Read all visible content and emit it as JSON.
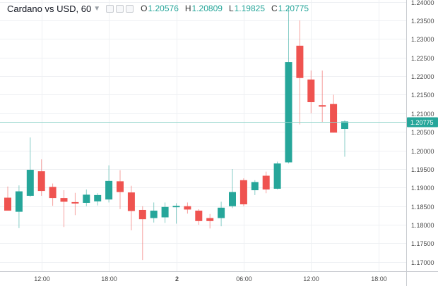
{
  "header": {
    "title": "Cardano vs USD, 60",
    "open_key": "O",
    "open": "1.20576",
    "high_key": "H",
    "high": "1.20809",
    "low_key": "L",
    "low": "1.19825",
    "close_key": "C",
    "close": "1.20775",
    "value_color": "#26a69a"
  },
  "colors": {
    "up": "#26a69a",
    "down": "#ef5350",
    "up_wick": "#26a69a",
    "down_wick": "#ef5350",
    "grid": "#eef0f3",
    "price_line": "#8fd3c9",
    "badge": "#26a69a"
  },
  "chart_data": {
    "type": "candlestick",
    "grid": true,
    "ylim": [
      1.1675,
      1.2405
    ],
    "yticks": [
      "1.24000",
      "1.23500",
      "1.23000",
      "1.22500",
      "1.22000",
      "1.21500",
      "1.21000",
      "1.20500",
      "1.20000",
      "1.19500",
      "1.19000",
      "1.18500",
      "1.18000",
      "1.17500",
      "1.17000"
    ],
    "xticks": [
      {
        "label": "12:00",
        "index": 3
      },
      {
        "label": "18:00",
        "index": 9
      },
      {
        "label": "2",
        "index": 15
      },
      {
        "label": "06:00",
        "index": 21
      },
      {
        "label": "12:00",
        "index": 27
      },
      {
        "label": "18:00",
        "index": 33
      }
    ],
    "last_price": "1.20775",
    "last_value": 1.20775,
    "candles": [
      {
        "o": 1.1873,
        "h": 1.1903,
        "l": 1.1838,
        "c": 1.1838
      },
      {
        "o": 1.1835,
        "h": 1.1906,
        "l": 1.1791,
        "c": 1.189
      },
      {
        "o": 1.1878,
        "h": 1.2035,
        "l": 1.1875,
        "c": 1.1948
      },
      {
        "o": 1.1944,
        "h": 1.1976,
        "l": 1.1878,
        "c": 1.1891
      },
      {
        "o": 1.1902,
        "h": 1.1911,
        "l": 1.1851,
        "c": 1.1872
      },
      {
        "o": 1.1872,
        "h": 1.1893,
        "l": 1.1794,
        "c": 1.1862
      },
      {
        "o": 1.1861,
        "h": 1.1886,
        "l": 1.1826,
        "c": 1.1858
      },
      {
        "o": 1.1859,
        "h": 1.1895,
        "l": 1.185,
        "c": 1.1881
      },
      {
        "o": 1.1863,
        "h": 1.1885,
        "l": 1.1852,
        "c": 1.188
      },
      {
        "o": 1.1868,
        "h": 1.196,
        "l": 1.186,
        "c": 1.1918
      },
      {
        "o": 1.1917,
        "h": 1.1947,
        "l": 1.1842,
        "c": 1.1888
      },
      {
        "o": 1.1887,
        "h": 1.1905,
        "l": 1.1785,
        "c": 1.1837
      },
      {
        "o": 1.184,
        "h": 1.185,
        "l": 1.1705,
        "c": 1.1815
      },
      {
        "o": 1.1818,
        "h": 1.186,
        "l": 1.1806,
        "c": 1.1838
      },
      {
        "o": 1.182,
        "h": 1.186,
        "l": 1.1805,
        "c": 1.1848
      },
      {
        "o": 1.1849,
        "h": 1.1858,
        "l": 1.1803,
        "c": 1.1851
      },
      {
        "o": 1.185,
        "h": 1.186,
        "l": 1.183,
        "c": 1.1841
      },
      {
        "o": 1.1838,
        "h": 1.1842,
        "l": 1.18,
        "c": 1.181
      },
      {
        "o": 1.1818,
        "h": 1.1829,
        "l": 1.179,
        "c": 1.181
      },
      {
        "o": 1.1818,
        "h": 1.1862,
        "l": 1.1796,
        "c": 1.1846
      },
      {
        "o": 1.185,
        "h": 1.195,
        "l": 1.1845,
        "c": 1.1888
      },
      {
        "o": 1.192,
        "h": 1.1925,
        "l": 1.185,
        "c": 1.1855
      },
      {
        "o": 1.1893,
        "h": 1.192,
        "l": 1.188,
        "c": 1.1915
      },
      {
        "o": 1.1932,
        "h": 1.1943,
        "l": 1.1885,
        "c": 1.1895
      },
      {
        "o": 1.1897,
        "h": 1.197,
        "l": 1.1895,
        "c": 1.1965
      },
      {
        "o": 1.1968,
        "h": 1.239,
        "l": 1.1965,
        "c": 1.2238
      },
      {
        "o": 1.2282,
        "h": 1.235,
        "l": 1.207,
        "c": 1.2195
      },
      {
        "o": 1.2191,
        "h": 1.2215,
        "l": 1.21,
        "c": 1.213
      },
      {
        "o": 1.2122,
        "h": 1.2215,
        "l": 1.2075,
        "c": 1.2118
      },
      {
        "o": 1.2125,
        "h": 1.215,
        "l": 1.2048,
        "c": 1.2048
      },
      {
        "o": 1.2058,
        "h": 1.2081,
        "l": 1.1983,
        "c": 1.2078
      }
    ]
  }
}
